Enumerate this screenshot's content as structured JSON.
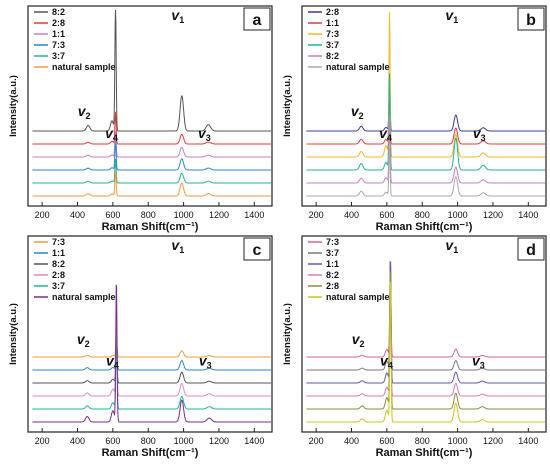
{
  "chart_data": [
    {
      "type": "line",
      "panel_label": "a",
      "xlabel": "Raman  Shift(cm⁻¹)",
      "ylabel": "Intensity(a.u.)",
      "xlim": [
        120,
        1500
      ],
      "xticks": [
        200,
        400,
        600,
        800,
        1000,
        1200,
        1400
      ],
      "peak_labels": [
        {
          "base": "v",
          "sub": "1",
          "x": 990
        },
        {
          "base": "v",
          "sub": "2",
          "x": 460
        },
        {
          "base": "v",
          "sub": "4",
          "x": 615
        },
        {
          "base": "v",
          "sub": "3",
          "x": 1140
        }
      ],
      "legend_position": "top-left",
      "series": [
        {
          "name": "8:2",
          "color": "#555555",
          "peaks": [
            0.22,
            0.035,
            0.8,
            0.04
          ]
        },
        {
          "name": "2:8",
          "color": "#e03c3c",
          "peaks": [
            0.06,
            0.012,
            0.2,
            0.012
          ]
        },
        {
          "name": "1:1",
          "color": "#c77fc0",
          "peaks": [
            0.06,
            0.012,
            0.16,
            0.012
          ]
        },
        {
          "name": "7:3",
          "color": "#2f86c9",
          "peaks": [
            0.07,
            0.012,
            0.18,
            0.012
          ]
        },
        {
          "name": "3:7",
          "color": "#25b39a",
          "peaks": [
            0.06,
            0.012,
            0.15,
            0.012
          ]
        },
        {
          "name": "natural sample",
          "color": "#f39a3c",
          "peaks": [
            0.08,
            0.015,
            0.16,
            0.015
          ]
        }
      ]
    },
    {
      "type": "line",
      "panel_label": "b",
      "xlabel": "Raman  Shift(cm⁻¹)",
      "ylabel": "Intensity(a.u.)",
      "xlim": [
        120,
        1500
      ],
      "xticks": [
        200,
        400,
        600,
        800,
        1000,
        1200,
        1400
      ],
      "peak_labels": [
        {
          "base": "v",
          "sub": "1",
          "x": 990
        },
        {
          "base": "v",
          "sub": "2",
          "x": 455
        },
        {
          "base": "v",
          "sub": "4",
          "x": 615
        },
        {
          "base": "v",
          "sub": "3",
          "x": 1145
        }
      ],
      "legend_position": "top-left",
      "series": [
        {
          "name": "2:8",
          "color": "#3b3b9e",
          "peaks": [
            0.1,
            0.03,
            0.28,
            0.02
          ]
        },
        {
          "name": "1:1",
          "color": "#e03c3c",
          "peaks": [
            0.1,
            0.03,
            0.35,
            0.02
          ]
        },
        {
          "name": "7:3",
          "color": "#f3b92a",
          "peaks": [
            0.14,
            0.035,
            0.9,
            0.025
          ]
        },
        {
          "name": "3:7",
          "color": "#25b39a",
          "peaks": [
            0.2,
            0.04,
            0.6,
            0.03
          ]
        },
        {
          "name": "8:2",
          "color": "#c77fc0",
          "peaks": [
            0.1,
            0.03,
            0.4,
            0.02
          ]
        },
        {
          "name": "natural sample",
          "color": "#aaaaaa",
          "peaks": [
            0.12,
            0.03,
            0.3,
            0.02
          ]
        }
      ]
    },
    {
      "type": "line",
      "panel_label": "c",
      "xlabel": "Raman  Shift(cm⁻¹)",
      "ylabel": "Intensity(a.u.)",
      "xlim": [
        120,
        1500
      ],
      "xticks": [
        200,
        400,
        600,
        800,
        1000,
        1200,
        1400
      ],
      "peak_labels": [
        {
          "base": "v",
          "sub": "1",
          "x": 990
        },
        {
          "base": "v",
          "sub": "2",
          "x": 455
        },
        {
          "base": "v",
          "sub": "4",
          "x": 620
        },
        {
          "base": "v",
          "sub": "3",
          "x": 1145
        }
      ],
      "legend_position": "top-left",
      "series": [
        {
          "name": "7:3",
          "color": "#f39a3c",
          "peaks": [
            0.04,
            0.012,
            0.12,
            0.01
          ]
        },
        {
          "name": "1:1",
          "color": "#2f86c9",
          "peaks": [
            0.06,
            0.015,
            0.2,
            0.012
          ]
        },
        {
          "name": "8:2",
          "color": "#555555",
          "peaks": [
            0.07,
            0.015,
            0.3,
            0.012
          ]
        },
        {
          "name": "2:8",
          "color": "#d98ad0",
          "peaks": [
            0.08,
            0.02,
            0.55,
            0.015
          ]
        },
        {
          "name": "3:7",
          "color": "#25b39a",
          "peaks": [
            0.08,
            0.02,
            0.5,
            0.015
          ]
        },
        {
          "name": "natural sample",
          "color": "#7a2f8c",
          "peaks": [
            0.14,
            0.035,
            0.9,
            0.025
          ]
        }
      ]
    },
    {
      "type": "line",
      "panel_label": "d",
      "xlabel": "Raman  Shift(cm⁻¹)",
      "ylabel": "Intensity(a.u.)",
      "xlim": [
        120,
        1500
      ],
      "xticks": [
        200,
        400,
        600,
        800,
        1000,
        1200,
        1400
      ],
      "peak_labels": [
        {
          "base": "v",
          "sub": "1",
          "x": 990
        },
        {
          "base": "v",
          "sub": "2",
          "x": 460
        },
        {
          "base": "v",
          "sub": "4",
          "x": 620
        },
        {
          "base": "v",
          "sub": "3",
          "x": 1140
        }
      ],
      "legend_position": "top-left",
      "series": [
        {
          "name": "7:3",
          "color": "#d9629a",
          "peaks": [
            0.05,
            0.012,
            0.6,
            0.01
          ]
        },
        {
          "name": "3:7",
          "color": "#7a7a7a",
          "peaks": [
            0.06,
            0.012,
            0.7,
            0.012
          ]
        },
        {
          "name": "1:1",
          "color": "#5a5ab5",
          "peaks": [
            0.07,
            0.015,
            0.8,
            0.012
          ]
        },
        {
          "name": "8:2",
          "color": "#e07aa8",
          "peaks": [
            0.08,
            0.015,
            0.7,
            0.012
          ]
        },
        {
          "name": "2:8",
          "color": "#8c8c3a",
          "peaks": [
            0.1,
            0.02,
            0.9,
            0.015
          ]
        },
        {
          "name": "natural sample",
          "color": "#c8c81e",
          "peaks": [
            0.12,
            0.02,
            0.92,
            0.015
          ]
        }
      ]
    }
  ]
}
